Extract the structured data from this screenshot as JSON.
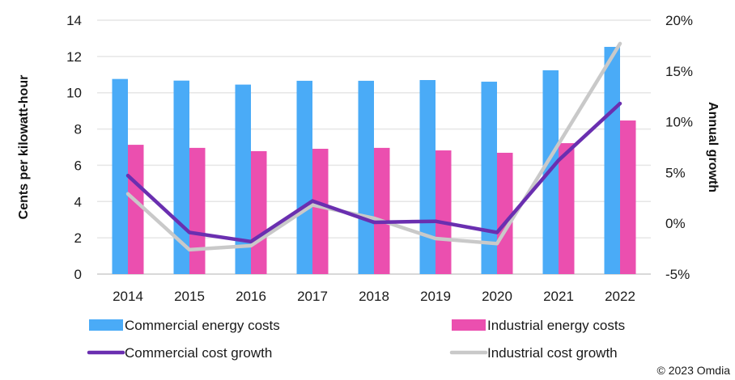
{
  "chart_data": {
    "type": "bar",
    "title": "",
    "categories": [
      "2014",
      "2015",
      "2016",
      "2017",
      "2018",
      "2019",
      "2020",
      "2021",
      "2022"
    ],
    "ylabel": "Cents per kilowatt-hour",
    "y2label": "Annual growth",
    "ylim": [
      0,
      14
    ],
    "yticks": [
      0,
      2,
      4,
      6,
      8,
      10,
      12,
      14
    ],
    "y2lim": [
      -5,
      20
    ],
    "y2ticks": [
      -5,
      0,
      5,
      10,
      15,
      20
    ],
    "y2tick_suffix": "%",
    "grid": true,
    "legend_position": "bottom",
    "series": [
      {
        "name": "Commercial energy costs",
        "type": "bar",
        "axis": "left",
        "color": "#4aabf7",
        "values": [
          10.76,
          10.67,
          10.45,
          10.66,
          10.66,
          10.7,
          10.61,
          11.24,
          12.53
        ]
      },
      {
        "name": "Industrial energy costs",
        "type": "bar",
        "axis": "left",
        "color": "#eb4faf",
        "values": [
          7.13,
          6.96,
          6.78,
          6.91,
          6.96,
          6.82,
          6.69,
          7.22,
          8.47
        ]
      },
      {
        "name": "Commercial cost growth",
        "type": "line",
        "axis": "right",
        "color": "#6a2fb0",
        "values": [
          4.7,
          -0.9,
          -1.8,
          2.2,
          0.1,
          0.2,
          -0.9,
          6.2,
          11.8
        ]
      },
      {
        "name": "Industrial cost growth",
        "type": "line",
        "axis": "right",
        "color": "#c9c9c9",
        "values": [
          2.9,
          -2.6,
          -2.2,
          1.8,
          0.5,
          -1.5,
          -2.0,
          7.8,
          17.7
        ]
      }
    ]
  },
  "credit": "© 2023 Omdia"
}
